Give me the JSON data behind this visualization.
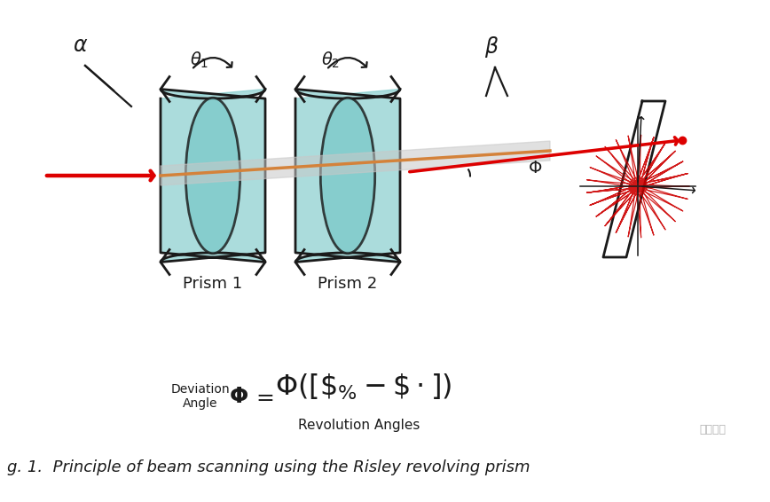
{
  "background_color": "#ffffff",
  "prism1_label": "Prism 1",
  "prism2_label": "Prism 2",
  "caption": "g. 1.  Principle of beam scanning using the Risley revolving prism",
  "formula_deviation": "Deviation",
  "formula_angle": "Angle",
  "formula_sub": "Revolution Angles",
  "watermark": "汽车之心",
  "teal_color": "#7ecaca",
  "dark_color": "#1a1a1a",
  "red_color": "#cc0000",
  "arrow_red": "#dd0000",
  "beam_orange": "#d4823a",
  "beam_gray": "#bbbbbb"
}
